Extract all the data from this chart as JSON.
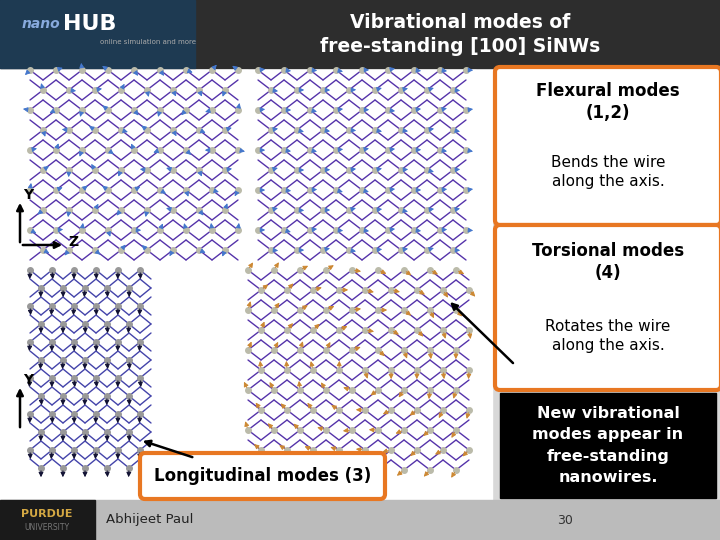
{
  "title_line1": "Vibrational modes of",
  "title_line2": "free-standing [100] Si​NWs",
  "title_color": "#ffffff",
  "header_bg": "#2d2d2d",
  "header_left_bg": "#1e3a52",
  "nanohub_color": "#ffffff",
  "main_bg": "#d8d8d8",
  "image_bg": "#ffffff",
  "box1_text": "Flexural modes\n(1,2)\nBends the wire\nalong the axis.",
  "box2_text": "Torsional modes\n(4)\nRotates the wire\nalong the axis.",
  "box3_text": "New vibrational\nmodes appear in\nfree-standing\nnanowires.",
  "orange_border": "#E87722",
  "box3_bg": "#000000",
  "box3_text_color": "#ffffff",
  "box12_bg": "#ffffff",
  "box12_text_color": "#000000",
  "bottom_text": "Abhijeet Paul",
  "bottom_number": "30",
  "longitudinal_label": "Longitudinal modes (3)",
  "longitudinal_bg": "#ffffff",
  "longitudinal_border": "#E87722",
  "lattice_color_top": "#5533aa",
  "lattice_color_bottom_left": "#4444aa",
  "lattice_color_bottom_right": "#cc8833",
  "atom_color": "#aaaaaa",
  "arrow_color_top": "#4477cc",
  "arrow_color_bottom_left": "#111133",
  "arrow_color_bottom_right": "#cc8833"
}
